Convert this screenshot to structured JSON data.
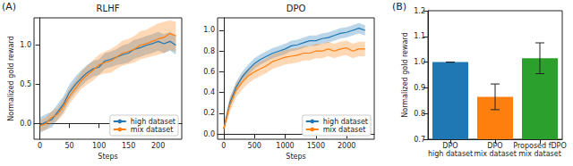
{
  "chart_data": [
    {
      "type": "line",
      "title": "RLHF",
      "annotations": [
        "(A)"
      ],
      "x_label": "Steps",
      "y_label": "Normalized gold reward",
      "x": [
        0,
        10,
        20,
        30,
        40,
        50,
        60,
        70,
        80,
        90,
        100,
        110,
        120,
        130,
        140,
        150,
        160,
        170,
        180,
        190,
        200,
        210,
        220,
        230
      ],
      "series": [
        {
          "name": "high dataset",
          "color": "#1f77b4",
          "values": [
            -0.02,
            0.02,
            0.05,
            0.15,
            0.25,
            0.4,
            0.5,
            0.58,
            0.65,
            0.7,
            0.72,
            0.8,
            0.82,
            0.85,
            0.88,
            0.9,
            0.95,
            0.97,
            1.0,
            1.02,
            1.05,
            1.02,
            1.05,
            1.0
          ],
          "lower": [
            -0.12,
            -0.08,
            -0.05,
            0.05,
            0.15,
            0.3,
            0.4,
            0.48,
            0.55,
            0.6,
            0.62,
            0.7,
            0.72,
            0.75,
            0.76,
            0.78,
            0.83,
            0.85,
            0.88,
            0.9,
            0.93,
            0.9,
            0.93,
            0.88
          ],
          "upper": [
            0.08,
            0.12,
            0.15,
            0.25,
            0.35,
            0.5,
            0.6,
            0.68,
            0.75,
            0.8,
            0.82,
            0.9,
            0.92,
            0.95,
            1.0,
            1.02,
            1.07,
            1.09,
            1.12,
            1.14,
            1.17,
            1.14,
            1.17,
            1.12
          ]
        },
        {
          "name": "mix dataset",
          "color": "#ff7f0e",
          "values": [
            -0.03,
            0.0,
            0.08,
            0.12,
            0.22,
            0.35,
            0.45,
            0.55,
            0.62,
            0.68,
            0.75,
            0.78,
            0.8,
            0.85,
            0.9,
            0.92,
            0.95,
            1.0,
            1.02,
            1.05,
            1.08,
            1.1,
            1.15,
            1.12
          ],
          "lower": [
            -0.1,
            -0.08,
            0.0,
            0.04,
            0.12,
            0.25,
            0.35,
            0.44,
            0.5,
            0.55,
            0.62,
            0.64,
            0.65,
            0.7,
            0.74,
            0.76,
            0.78,
            0.82,
            0.84,
            0.86,
            0.88,
            0.9,
            0.94,
            0.92
          ],
          "upper": [
            0.04,
            0.08,
            0.16,
            0.2,
            0.32,
            0.45,
            0.55,
            0.66,
            0.74,
            0.81,
            0.88,
            0.92,
            0.95,
            1.0,
            1.06,
            1.08,
            1.12,
            1.18,
            1.2,
            1.24,
            1.28,
            1.3,
            1.32,
            1.3
          ]
        }
      ],
      "xlim": [
        -10,
        240
      ],
      "xticks": [
        0,
        50,
        100,
        150,
        200
      ],
      "ylim": [
        -0.2,
        1.35
      ],
      "yticks": [
        {
          "value": 0,
          "label": "0.0"
        },
        {
          "value": 0.5,
          "label": "0.5"
        },
        {
          "value": 1,
          "label": "1.0"
        }
      ],
      "grid": false,
      "legend": "lower right"
    },
    {
      "type": "line",
      "title": "DPO",
      "x_label": "Steps",
      "x": [
        0,
        100,
        200,
        300,
        400,
        500,
        600,
        700,
        800,
        900,
        1000,
        1100,
        1200,
        1300,
        1400,
        1500,
        1600,
        1700,
        1800,
        1900,
        2000,
        2100,
        2200,
        2300
      ],
      "series": [
        {
          "name": "high dataset",
          "color": "#1f77b4",
          "values": [
            0.05,
            0.3,
            0.45,
            0.55,
            0.62,
            0.68,
            0.72,
            0.75,
            0.78,
            0.8,
            0.82,
            0.85,
            0.86,
            0.88,
            0.9,
            0.9,
            0.92,
            0.93,
            0.95,
            0.97,
            0.98,
            1.0,
            1.02,
            1.0
          ],
          "lower": [
            0.02,
            0.25,
            0.4,
            0.5,
            0.57,
            0.63,
            0.67,
            0.7,
            0.73,
            0.75,
            0.77,
            0.8,
            0.81,
            0.83,
            0.85,
            0.85,
            0.87,
            0.88,
            0.9,
            0.92,
            0.93,
            0.95,
            0.97,
            0.95
          ],
          "upper": [
            0.08,
            0.35,
            0.5,
            0.6,
            0.67,
            0.73,
            0.77,
            0.8,
            0.83,
            0.85,
            0.87,
            0.9,
            0.91,
            0.93,
            0.95,
            0.95,
            0.97,
            0.98,
            1.0,
            1.02,
            1.03,
            1.05,
            1.07,
            1.05
          ]
        },
        {
          "name": "mix dataset",
          "color": "#ff7f0e",
          "values": [
            0.05,
            0.28,
            0.42,
            0.5,
            0.56,
            0.6,
            0.63,
            0.66,
            0.7,
            0.72,
            0.74,
            0.75,
            0.76,
            0.78,
            0.78,
            0.8,
            0.8,
            0.82,
            0.8,
            0.82,
            0.83,
            0.8,
            0.82,
            0.82
          ],
          "lower": [
            0.0,
            0.21,
            0.35,
            0.43,
            0.49,
            0.53,
            0.56,
            0.59,
            0.63,
            0.65,
            0.67,
            0.68,
            0.69,
            0.71,
            0.71,
            0.73,
            0.73,
            0.75,
            0.73,
            0.75,
            0.76,
            0.73,
            0.75,
            0.75
          ],
          "upper": [
            0.1,
            0.35,
            0.49,
            0.57,
            0.63,
            0.67,
            0.7,
            0.73,
            0.77,
            0.79,
            0.81,
            0.82,
            0.83,
            0.85,
            0.85,
            0.87,
            0.87,
            0.89,
            0.87,
            0.89,
            0.9,
            0.87,
            0.89,
            0.89
          ]
        }
      ],
      "xlim": [
        -100,
        2450
      ],
      "xticks": [
        0,
        500,
        1000,
        1500,
        2000
      ],
      "ylim": [
        -0.05,
        1.12
      ],
      "yticks": [
        {
          "value": 0,
          "label": "0.0"
        },
        {
          "value": 0.2,
          "label": "0.2"
        },
        {
          "value": 0.4,
          "label": "0.4"
        },
        {
          "value": 0.6,
          "label": "0.6"
        },
        {
          "value": 0.8,
          "label": "0.8"
        },
        {
          "value": 1,
          "label": "1.0"
        }
      ],
      "grid": false,
      "legend": "lower right"
    },
    {
      "type": "bar",
      "annotations": [
        "(B)"
      ],
      "y_label": "Normalized gold reward",
      "categories": [
        "DPO\nhigh dataset",
        "DPO\nmix dataset",
        "Proposed fDPO\nmix dataset"
      ],
      "values": [
        1.0,
        0.865,
        1.015
      ],
      "errors": [
        0,
        0.05,
        0.06
      ],
      "colors": [
        "#1f77b4",
        "#ff7f0e",
        "#2ca02c"
      ],
      "ylim": [
        0.7,
        1.2
      ],
      "yticks": [
        0.7,
        0.8,
        0.9,
        {
          "value": 1,
          "label": "1.0"
        },
        1.1,
        1.2
      ],
      "grid": false
    }
  ]
}
